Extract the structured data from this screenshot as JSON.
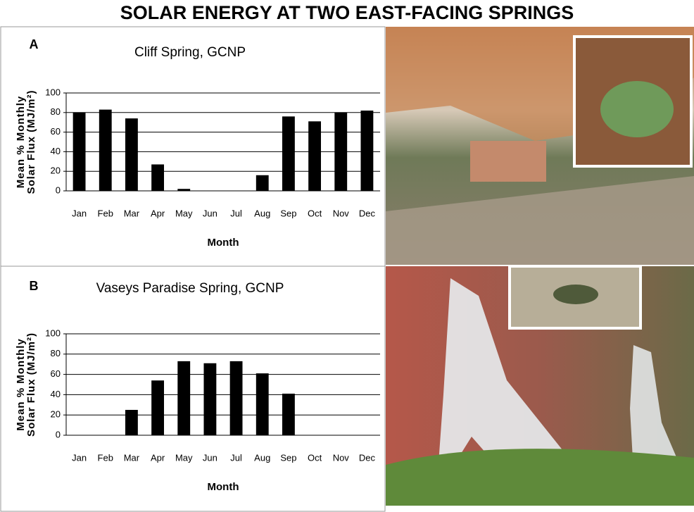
{
  "title": "SOLAR ENERGY AT TWO EAST-FACING SPRINGS",
  "chart_data": [
    {
      "type": "bar",
      "panel": "A",
      "title": "Cliff Spring, GCNP",
      "ylabel": [
        "Mean % Monthly",
        "Solar Flux (MJ/m²)"
      ],
      "xlabel": "Month",
      "categories": [
        "Jan",
        "Feb",
        "Mar",
        "Apr",
        "May",
        "Jun",
        "Jul",
        "Aug",
        "Sep",
        "Oct",
        "Nov",
        "Dec"
      ],
      "values": [
        80,
        83,
        74,
        27,
        2,
        0,
        0,
        16,
        76,
        71,
        80,
        82
      ],
      "color": "#000000",
      "ylim": [
        0,
        100
      ],
      "yticks": [
        0,
        20,
        40,
        60,
        80,
        100
      ],
      "grid": true
    },
    {
      "type": "bar",
      "panel": "B",
      "title": "Vaseys Paradise Spring, GCNP",
      "ylabel": [
        "Mean % Monthly",
        "Solar Flux (MJ/m²)"
      ],
      "xlabel": "Month",
      "categories": [
        "Jan",
        "Feb",
        "Mar",
        "Apr",
        "May",
        "Jun",
        "Jul",
        "Aug",
        "Sep",
        "Oct",
        "Nov",
        "Dec"
      ],
      "values": [
        0,
        0,
        25,
        54,
        73,
        71,
        73,
        61,
        41,
        0,
        0,
        0
      ],
      "color": "#000000",
      "ylim": [
        0,
        100
      ],
      "yticks": [
        0,
        20,
        40,
        60,
        80,
        100
      ],
      "grid": true
    }
  ]
}
